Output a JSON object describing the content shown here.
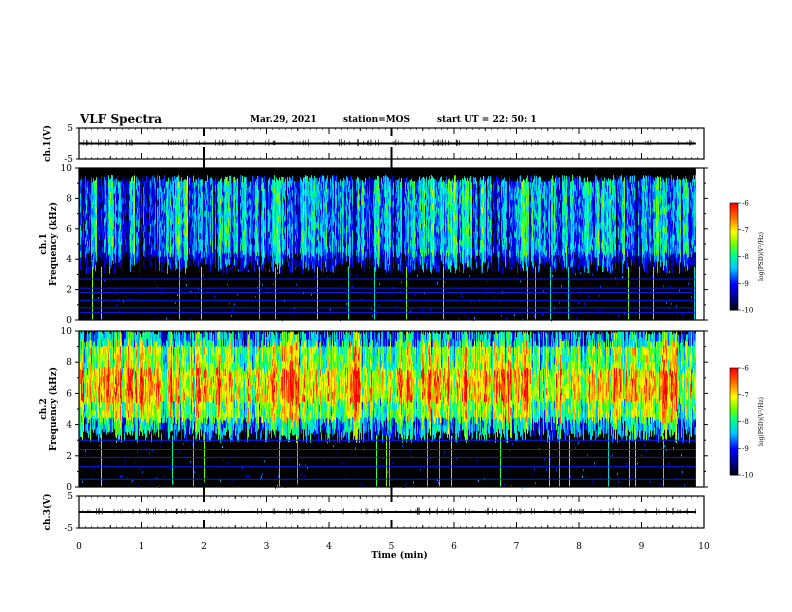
{
  "header": {
    "title": "VLF Spectra",
    "date": "Mar.29, 2021",
    "station": "station=MOS",
    "start": "start  UT =   22: 50: 1"
  },
  "chart_data": [
    {
      "type": "line",
      "name": "waveform-ch1",
      "ylabel": "ch.1(V)",
      "ylim": [
        -5,
        5
      ],
      "y_ticks": [
        "5",
        "-5"
      ],
      "x": [
        0,
        9.87
      ],
      "values": [
        0,
        0
      ],
      "xlim": [
        0,
        10
      ]
    },
    {
      "type": "heatmap",
      "name": "spectrogram-ch1",
      "ylabel": "ch.1\nFrequency (kHz)",
      "ylim": [
        0,
        10
      ],
      "y_ticks": [
        "0",
        "2",
        "4",
        "6",
        "8",
        "10"
      ],
      "xlim": [
        0,
        10
      ],
      "data_x_end": 9.87,
      "band_khz": [
        3.5,
        9.3
      ],
      "band_mean_level": -8.1,
      "background_level": -10,
      "horizontal_lines_khz": [
        0.5,
        0.8,
        1.3,
        1.8,
        2.1,
        2.7
      ],
      "colorbar": {
        "label": "log(PSD)(V²/Hz)",
        "range": [
          -10,
          -6
        ],
        "ticks": [
          "-6",
          "-7",
          "-8",
          "-9",
          "-10"
        ]
      }
    },
    {
      "type": "heatmap",
      "name": "spectrogram-ch2",
      "ylabel": "ch.2\nFrequency (kHz)",
      "ylim": [
        0,
        10
      ],
      "y_ticks": [
        "0",
        "2",
        "4",
        "6",
        "8",
        "10"
      ],
      "xlim": [
        0,
        10
      ],
      "data_x_end": 9.87,
      "band_khz": [
        3.3,
        10
      ],
      "band_mean_level": -7.0,
      "band_peak_khz": [
        5.5,
        7.5
      ],
      "background_level": -10,
      "horizontal_lines_khz": [
        0.5,
        1.3,
        1.9,
        2.4,
        3.0
      ],
      "colorbar": {
        "label": "log(PSD)(V²/Hz)",
        "range": [
          -10,
          -6
        ],
        "ticks": [
          "-6",
          "-7",
          "-8",
          "-9",
          "-10"
        ]
      }
    },
    {
      "type": "line",
      "name": "waveform-ch3",
      "ylabel": "ch.3(V)",
      "ylim": [
        -5,
        5
      ],
      "y_ticks": [
        "5",
        "-5"
      ],
      "x": [
        0,
        9.87
      ],
      "values": [
        0,
        0
      ],
      "xlim": [
        0,
        10
      ]
    }
  ],
  "x_axis": {
    "label": "Time (min)",
    "ticks": [
      "0",
      "1",
      "2",
      "3",
      "4",
      "5",
      "6",
      "7",
      "8",
      "9",
      "10"
    ],
    "range": [
      0,
      10
    ]
  }
}
